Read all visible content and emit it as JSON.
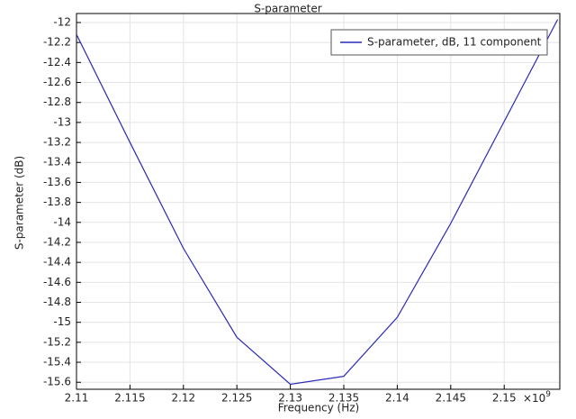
{
  "chart_data": {
    "type": "line",
    "title": "S-parameter",
    "x_label": "Frequency (Hz)",
    "y_label": "S-parameter (dB)",
    "x_offset_text": {
      "base": "×10",
      "exponent": "9"
    },
    "x": [
      2.11,
      2.115,
      2.12,
      2.125,
      2.13,
      2.135,
      2.14,
      2.145,
      2.15,
      2.155
    ],
    "series": [
      {
        "name": "S-parameter, dB, 11 component",
        "color": "#2a2ab8",
        "values": [
          -12.12,
          -13.2,
          -14.26,
          -15.15,
          -15.62,
          -15.54,
          -14.95,
          -14.01,
          -12.99,
          -11.97
        ]
      }
    ],
    "xlim": [
      2.11,
      2.1552
    ],
    "ylim": [
      -15.67,
      -11.91
    ],
    "xticks": [
      2.11,
      2.115,
      2.12,
      2.125,
      2.13,
      2.135,
      2.14,
      2.145,
      2.15
    ],
    "yticks": [
      -12,
      -12.2,
      -12.4,
      -12.6,
      -12.8,
      -13,
      -13.2,
      -13.4,
      -13.6,
      -13.8,
      -14,
      -14.2,
      -14.4,
      -14.6,
      -14.8,
      -15,
      -15.2,
      -15.4,
      -15.6
    ],
    "grid": true,
    "legend": "top-right"
  }
}
